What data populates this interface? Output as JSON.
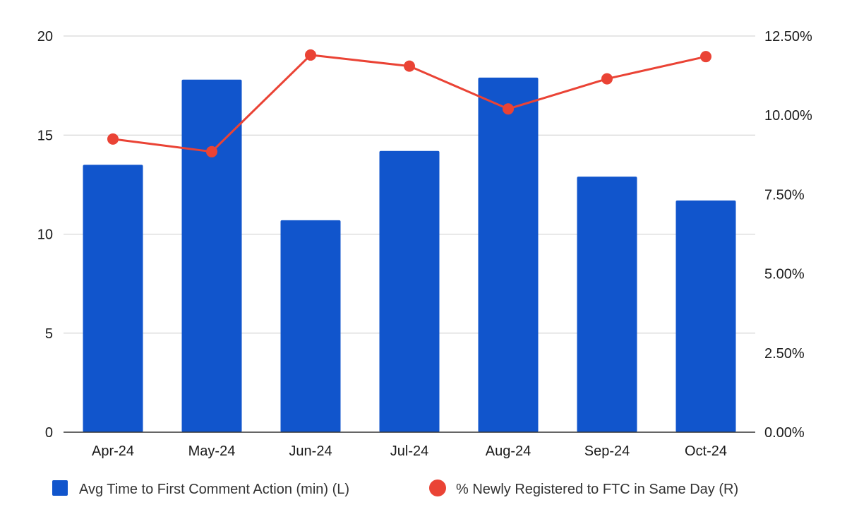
{
  "chart_data": {
    "type": "bar",
    "categories": [
      "Apr-24",
      "May-24",
      "Jun-24",
      "Jul-24",
      "Aug-24",
      "Sep-24",
      "Oct-24"
    ],
    "series": [
      {
        "name": "Avg Time to First Comment Action (min) (L)",
        "type": "bar",
        "axis": "left",
        "color": "#1155cc",
        "values": [
          13.5,
          17.8,
          10.7,
          14.2,
          17.9,
          12.9,
          11.7
        ]
      },
      {
        "name": "% Newly Registered to FTC in Same Day (R)",
        "type": "line",
        "axis": "right",
        "color": "#ea4335",
        "values": [
          9.25,
          8.85,
          11.9,
          11.55,
          10.2,
          11.15,
          11.85
        ]
      }
    ],
    "y_left": {
      "ylim": [
        0,
        20
      ],
      "ticks": [
        0,
        5,
        10,
        15,
        20
      ],
      "tick_labels": [
        "0",
        "5",
        "10",
        "15",
        "20"
      ]
    },
    "y_right": {
      "ylim": [
        0,
        12.5
      ],
      "unit": "%",
      "ticks": [
        0,
        2.5,
        5,
        7.5,
        10,
        12.5
      ],
      "tick_labels": [
        "0.00%",
        "2.50%",
        "5.00%",
        "7.50%",
        "10.00%",
        "12.50%"
      ]
    },
    "grid": true,
    "legend": "bottom"
  }
}
